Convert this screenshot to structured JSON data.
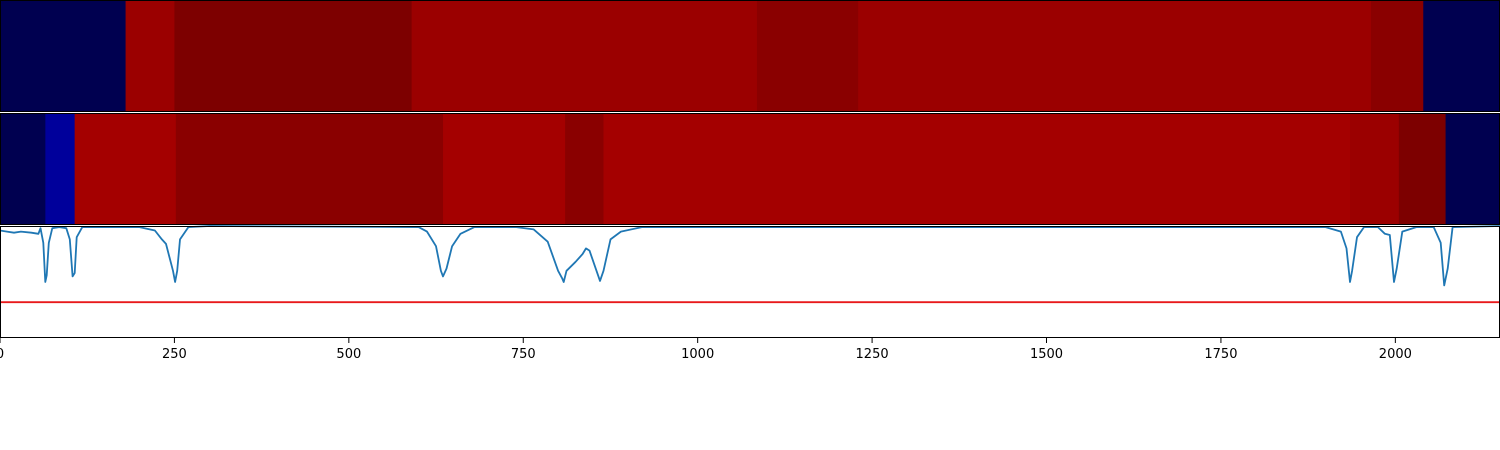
{
  "chart_data": [
    {
      "type": "heatmap",
      "xlim": [
        0,
        2150
      ],
      "segments": [
        {
          "start": 0,
          "end": 180,
          "color": "#000050"
        },
        {
          "start": 180,
          "end": 250,
          "color": "#9b0000"
        },
        {
          "start": 250,
          "end": 590,
          "color": "#7d0000"
        },
        {
          "start": 590,
          "end": 1085,
          "color": "#9b0000"
        },
        {
          "start": 1085,
          "end": 1230,
          "color": "#8a0000"
        },
        {
          "start": 1230,
          "end": 1965,
          "color": "#9b0000"
        },
        {
          "start": 1965,
          "end": 2040,
          "color": "#8a0000"
        },
        {
          "start": 2040,
          "end": 2150,
          "color": "#000050"
        }
      ]
    },
    {
      "type": "heatmap",
      "xlim": [
        0,
        2150
      ],
      "segments": [
        {
          "start": 0,
          "end": 65,
          "color": "#000050"
        },
        {
          "start": 65,
          "end": 107,
          "color": "#00009b"
        },
        {
          "start": 107,
          "end": 252,
          "color": "#a40000"
        },
        {
          "start": 252,
          "end": 635,
          "color": "#8a0000"
        },
        {
          "start": 635,
          "end": 810,
          "color": "#a40000"
        },
        {
          "start": 810,
          "end": 865,
          "color": "#8a0000"
        },
        {
          "start": 865,
          "end": 1935,
          "color": "#a40000"
        },
        {
          "start": 1935,
          "end": 2005,
          "color": "#9b0000"
        },
        {
          "start": 2005,
          "end": 2072,
          "color": "#7d0000"
        },
        {
          "start": 2072,
          "end": 2150,
          "color": "#000050"
        }
      ]
    },
    {
      "type": "line",
      "xlim": [
        0,
        2150
      ],
      "ylim": [
        0,
        1
      ],
      "grid": false,
      "xticks": [
        0,
        250,
        500,
        750,
        1000,
        1250,
        1500,
        1750,
        2000
      ],
      "xtick_labels": [
        "0",
        "250",
        "500",
        "750",
        "1000",
        "1250",
        "1500",
        "1750",
        "2000"
      ],
      "series": [
        {
          "color": "#1f77b4",
          "points": [
            [
              0,
              0.96
            ],
            [
              10,
              0.95
            ],
            [
              20,
              0.94
            ],
            [
              30,
              0.95
            ],
            [
              45,
              0.94
            ],
            [
              55,
              0.93
            ],
            [
              58,
              0.98
            ],
            [
              62,
              0.85
            ],
            [
              65,
              0.5
            ],
            [
              67,
              0.56
            ],
            [
              70,
              0.85
            ],
            [
              75,
              0.98
            ],
            [
              85,
              0.99
            ],
            [
              95,
              0.98
            ],
            [
              100,
              0.88
            ],
            [
              104,
              0.55
            ],
            [
              107,
              0.58
            ],
            [
              110,
              0.9
            ],
            [
              118,
              0.99
            ],
            [
              200,
              0.99
            ],
            [
              222,
              0.96
            ],
            [
              232,
              0.88
            ],
            [
              238,
              0.84
            ],
            [
              243,
              0.72
            ],
            [
              248,
              0.6
            ],
            [
              251,
              0.5
            ],
            [
              254,
              0.6
            ],
            [
              258,
              0.88
            ],
            [
              270,
              0.99
            ],
            [
              300,
              1.0
            ],
            [
              600,
              0.99
            ],
            [
              612,
              0.95
            ],
            [
              625,
              0.82
            ],
            [
              632,
              0.6
            ],
            [
              635,
              0.55
            ],
            [
              640,
              0.62
            ],
            [
              648,
              0.82
            ],
            [
              660,
              0.93
            ],
            [
              680,
              0.99
            ],
            [
              740,
              0.99
            ],
            [
              765,
              0.97
            ],
            [
              785,
              0.86
            ],
            [
              800,
              0.6
            ],
            [
              806,
              0.53
            ],
            [
              808,
              0.5
            ],
            [
              812,
              0.6
            ],
            [
              825,
              0.68
            ],
            [
              835,
              0.75
            ],
            [
              840,
              0.8
            ],
            [
              845,
              0.78
            ],
            [
              855,
              0.6
            ],
            [
              860,
              0.51
            ],
            [
              865,
              0.6
            ],
            [
              875,
              0.88
            ],
            [
              890,
              0.95
            ],
            [
              920,
              0.99
            ],
            [
              1900,
              0.99
            ],
            [
              1922,
              0.95
            ],
            [
              1930,
              0.8
            ],
            [
              1935,
              0.5
            ],
            [
              1938,
              0.6
            ],
            [
              1945,
              0.9
            ],
            [
              1955,
              0.99
            ],
            [
              1975,
              0.99
            ],
            [
              1985,
              0.93
            ],
            [
              1992,
              0.92
            ],
            [
              1998,
              0.5
            ],
            [
              2002,
              0.62
            ],
            [
              2010,
              0.95
            ],
            [
              2030,
              0.99
            ],
            [
              2055,
              0.99
            ],
            [
              2065,
              0.85
            ],
            [
              2070,
              0.47
            ],
            [
              2075,
              0.62
            ],
            [
              2082,
              0.99
            ],
            [
              2150,
              1.0
            ]
          ]
        },
        {
          "color": "#e8191b",
          "points": [
            [
              0,
              0.32
            ],
            [
              2150,
              0.32
            ]
          ]
        }
      ]
    }
  ]
}
